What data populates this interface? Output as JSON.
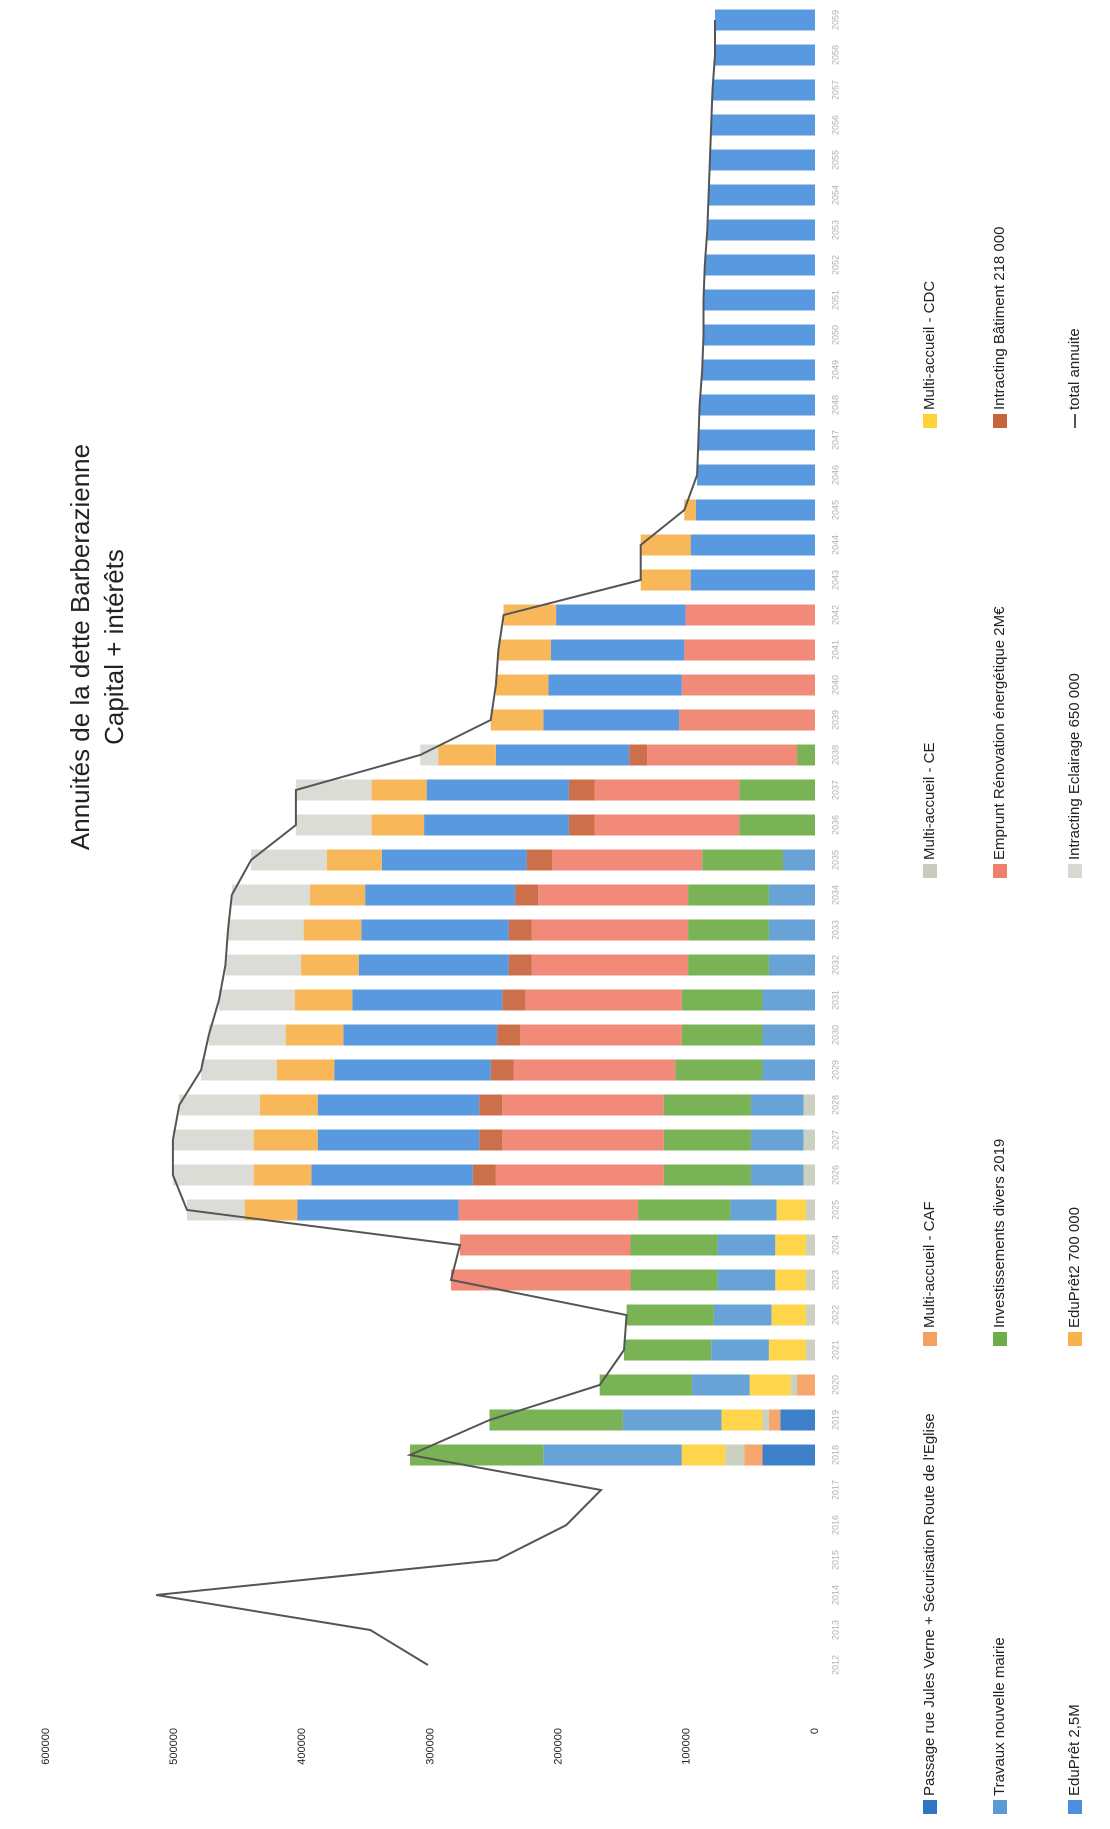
{
  "chart_data": {
    "type": "bar",
    "stacked": true,
    "title": "Annuités de la dette Barberazienne",
    "subtitle": "Capital + intérêts",
    "categories": [
      "2012",
      "2013",
      "2014",
      "2015",
      "2016",
      "2017",
      "2018",
      "2019",
      "2020",
      "2021",
      "2022",
      "2023",
      "2024",
      "2025",
      "2026",
      "2027",
      "2028",
      "2029",
      "2030",
      "2031",
      "2032",
      "2033",
      "2034",
      "2035",
      "2036",
      "2037",
      "2038",
      "2039",
      "2040",
      "2041",
      "2042",
      "2043",
      "2044",
      "2045",
      "2046",
      "2047",
      "2048",
      "2049",
      "2050",
      "2051",
      "2052",
      "2053",
      "2054",
      "2055",
      "2056",
      "2057",
      "2058",
      "2059"
    ],
    "ylim": [
      0,
      600000
    ],
    "yticks": [
      0,
      100000,
      200000,
      300000,
      400000,
      500000,
      600000
    ],
    "series": [
      {
        "name": "Passage rue Jules Verne + Sécurisation Route de l'Eglise",
        "color": "#2e75c6",
        "values": [
          null,
          null,
          null,
          null,
          null,
          null,
          41000,
          27000,
          null,
          null,
          null,
          null,
          null,
          null,
          null,
          null,
          null,
          null,
          null,
          null,
          null,
          null,
          null,
          null,
          null,
          null,
          null,
          null,
          null,
          null,
          null,
          null,
          null,
          null,
          null,
          null,
          null,
          null,
          null,
          null,
          null,
          null,
          null,
          null,
          null,
          null,
          null,
          null
        ]
      },
      {
        "name": "Multi-accueil - CAF",
        "color": "#f4a060",
        "values": [
          null,
          null,
          null,
          null,
          null,
          null,
          14000,
          9000,
          14000,
          null,
          null,
          null,
          null,
          null,
          null,
          null,
          null,
          null,
          null,
          null,
          null,
          null,
          null,
          null,
          null,
          null,
          null,
          null,
          null,
          null,
          null,
          null,
          null,
          null,
          null,
          null,
          null,
          null,
          null,
          null,
          null,
          null,
          null,
          null,
          null,
          null,
          null,
          null
        ]
      },
      {
        "name": "Multi-accueil - CE",
        "color": "#c8ccbc",
        "values": [
          null,
          null,
          null,
          null,
          null,
          null,
          15000,
          5000,
          5000,
          7000,
          7000,
          7000,
          7000,
          7000,
          9000,
          9000,
          9000,
          null,
          null,
          null,
          null,
          null,
          null,
          null,
          null,
          null,
          null,
          null,
          null,
          null,
          null,
          null,
          null,
          null,
          null,
          null,
          null,
          null,
          null,
          null,
          null,
          null,
          null,
          null,
          null,
          null,
          null,
          null
        ]
      },
      {
        "name": "Multi-accueil - CDC",
        "color": "#ffd23c",
        "values": [
          null,
          null,
          null,
          null,
          null,
          null,
          34000,
          32000,
          32000,
          29000,
          27000,
          24000,
          24000,
          23000,
          null,
          null,
          null,
          null,
          null,
          null,
          null,
          null,
          null,
          null,
          null,
          null,
          null,
          null,
          null,
          null,
          null,
          null,
          null,
          null,
          null,
          null,
          null,
          null,
          null,
          null,
          null,
          null,
          null,
          null,
          null,
          null,
          null,
          null
        ]
      },
      {
        "name": "Travaux nouvelle mairie",
        "color": "#5b9bd5",
        "values": [
          null,
          null,
          null,
          null,
          null,
          null,
          108000,
          77000,
          45000,
          45000,
          45000,
          45000,
          45000,
          36000,
          41000,
          41000,
          41000,
          41000,
          41000,
          41000,
          36000,
          36000,
          36000,
          25000,
          null,
          null,
          null,
          null,
          null,
          null,
          null,
          null,
          null,
          null,
          null,
          null,
          null,
          null,
          null,
          null,
          null,
          null,
          null,
          null,
          null,
          null,
          null,
          null
        ]
      },
      {
        "name": "Investissements divers 2019",
        "color": "#6fad47",
        "values": [
          null,
          null,
          null,
          null,
          null,
          null,
          104000,
          104000,
          72000,
          68000,
          68000,
          68000,
          68000,
          72000,
          68000,
          68000,
          68000,
          68000,
          63000,
          63000,
          63000,
          63000,
          63000,
          63000,
          59000,
          59000,
          14000,
          null,
          null,
          null,
          null,
          null,
          null,
          null,
          null,
          null,
          null,
          null,
          null,
          null,
          null,
          null,
          null,
          null,
          null,
          null,
          null,
          null
        ]
      },
      {
        "name": "Emprunt Rénovation énergétique 2M€",
        "color": "#f0806c",
        "values": [
          null,
          null,
          null,
          null,
          null,
          null,
          null,
          null,
          null,
          null,
          null,
          140000,
          133000,
          140000,
          131000,
          126000,
          126000,
          126000,
          126000,
          122000,
          122000,
          122000,
          117000,
          117000,
          113000,
          113000,
          117000,
          106000,
          104000,
          102000,
          101000,
          null,
          null,
          null,
          null,
          null,
          null,
          null,
          null,
          null,
          null,
          null,
          null,
          null,
          null,
          null,
          null,
          null
        ]
      },
      {
        "name": "Intracting Bâtiment 218 000",
        "color": "#c8643c",
        "values": [
          null,
          null,
          null,
          null,
          null,
          null,
          null,
          null,
          null,
          null,
          null,
          null,
          null,
          null,
          18000,
          18000,
          18000,
          18000,
          18000,
          18000,
          18000,
          18000,
          18000,
          20000,
          20000,
          20000,
          14000,
          null,
          null,
          null,
          null,
          null,
          null,
          null,
          null,
          null,
          null,
          null,
          null,
          null,
          null,
          null,
          null,
          null,
          null,
          null,
          null,
          null
        ]
      },
      {
        "name": "EduPrêt 2,5M",
        "color": "#4a90dc",
        "values": [
          null,
          null,
          null,
          null,
          null,
          null,
          null,
          null,
          null,
          null,
          null,
          null,
          null,
          126000,
          126000,
          126000,
          126000,
          122000,
          120000,
          117000,
          117000,
          115000,
          117000,
          113000,
          113000,
          111000,
          104000,
          106000,
          104000,
          104000,
          101000,
          97000,
          97000,
          93000,
          92000,
          91000,
          90000,
          88000,
          87000,
          87000,
          86000,
          84000,
          83000,
          82000,
          81000,
          80000,
          78000,
          78000
        ]
      },
      {
        "name": "EduPrêt2 700 000",
        "color": "#f7b24c",
        "values": [
          null,
          null,
          null,
          null,
          null,
          null,
          null,
          null,
          null,
          null,
          null,
          null,
          null,
          41000,
          45000,
          50000,
          45000,
          45000,
          45000,
          45000,
          45000,
          45000,
          43000,
          43000,
          41000,
          43000,
          45000,
          41000,
          41000,
          41000,
          41000,
          39000,
          39000,
          9000,
          null,
          null,
          null,
          null,
          null,
          null,
          null,
          null,
          null,
          null,
          null,
          null,
          null,
          null
        ]
      },
      {
        "name": "Intracting Eclairage 650 000",
        "color": "#d9d9d4",
        "values": [
          null,
          null,
          null,
          null,
          null,
          null,
          null,
          null,
          null,
          null,
          null,
          null,
          null,
          45000,
          63000,
          63000,
          63000,
          59000,
          60000,
          59000,
          59000,
          59000,
          61000,
          59000,
          59000,
          59000,
          14000,
          null,
          null,
          null,
          null,
          null,
          null,
          null,
          null,
          null,
          null,
          null,
          null,
          null,
          null,
          null,
          null,
          null,
          null,
          null,
          null,
          null
        ]
      },
      {
        "name": "total annuite",
        "type": "line",
        "color": "#555555",
        "values": [
          302000,
          347000,
          514000,
          248000,
          194000,
          167000,
          316000,
          254000,
          168000,
          149000,
          147000,
          284000,
          277000,
          490000,
          501000,
          501000,
          496000,
          479000,
          473000,
          465000,
          460000,
          458000,
          455000,
          440000,
          405000,
          405000,
          308000,
          253000,
          249000,
          247000,
          243000,
          136000,
          136000,
          102000,
          92000,
          91000,
          90000,
          88000,
          87000,
          87000,
          86000,
          84000,
          83000,
          82000,
          81000,
          80000,
          78000,
          78000
        ]
      }
    ]
  }
}
